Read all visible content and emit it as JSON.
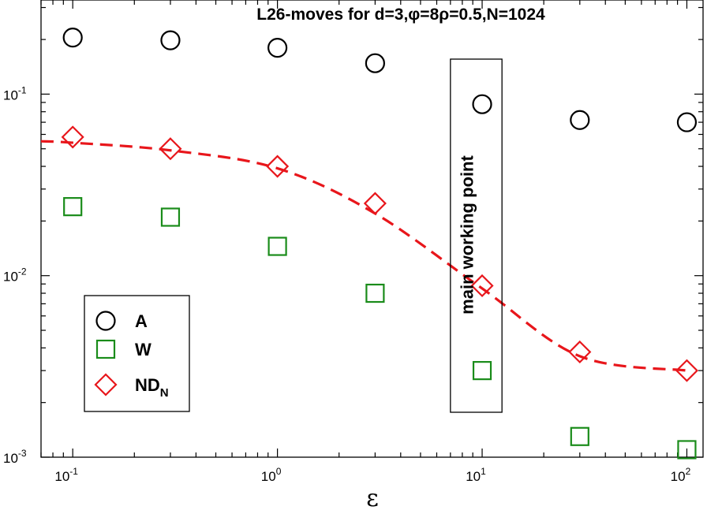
{
  "chart_data": {
    "type": "scatter",
    "title": "L26-moves for d=3,φ=8ρ=0.5,N=1024",
    "xlabel": "ε",
    "ylabel": "",
    "x_scale": "log",
    "y_scale": "log",
    "xlim": [
      0.07,
      120
    ],
    "ylim": [
      0.001,
      0.33
    ],
    "x_ticks": [
      {
        "value": 0.1,
        "base": "10",
        "exp": "-1"
      },
      {
        "value": 1,
        "base": "10",
        "exp": "0"
      },
      {
        "value": 10,
        "base": "10",
        "exp": "1"
      },
      {
        "value": 100,
        "base": "10",
        "exp": "2"
      }
    ],
    "y_ticks": [
      {
        "value": 0.001,
        "base": "10",
        "exp": "-3"
      },
      {
        "value": 0.01,
        "base": "10",
        "exp": "-2"
      },
      {
        "value": 0.1,
        "base": "10",
        "exp": "-1"
      }
    ],
    "grid": false,
    "legend_position": "bottom-left",
    "x": [
      0.1,
      0.3,
      1,
      3,
      10,
      30,
      100
    ],
    "series": [
      {
        "name": "A",
        "marker": "circle",
        "color": "#000000",
        "values": [
          0.205,
          0.198,
          0.18,
          0.148,
          0.088,
          0.072,
          0.07
        ]
      },
      {
        "name": "W",
        "marker": "square",
        "color": "#1a8c1a",
        "values": [
          0.024,
          0.021,
          0.0145,
          0.008,
          0.003,
          0.0013,
          0.0011
        ]
      },
      {
        "name": "ND",
        "name_subscript": "N",
        "marker": "diamond",
        "color": "#e8161b",
        "values": [
          0.058,
          0.05,
          0.04,
          0.025,
          0.0088,
          0.0038,
          0.003
        ]
      }
    ],
    "fit_line": {
      "style": "dashed",
      "color": "#e8161b",
      "x": [
        0.07,
        0.1,
        0.3,
        1,
        3,
        10,
        30,
        100
      ],
      "y": [
        0.055,
        0.054,
        0.049,
        0.039,
        0.022,
        0.0085,
        0.0036,
        0.003
      ]
    },
    "annotation": {
      "text": "main working point",
      "x_range": [
        7,
        12.5
      ]
    }
  }
}
